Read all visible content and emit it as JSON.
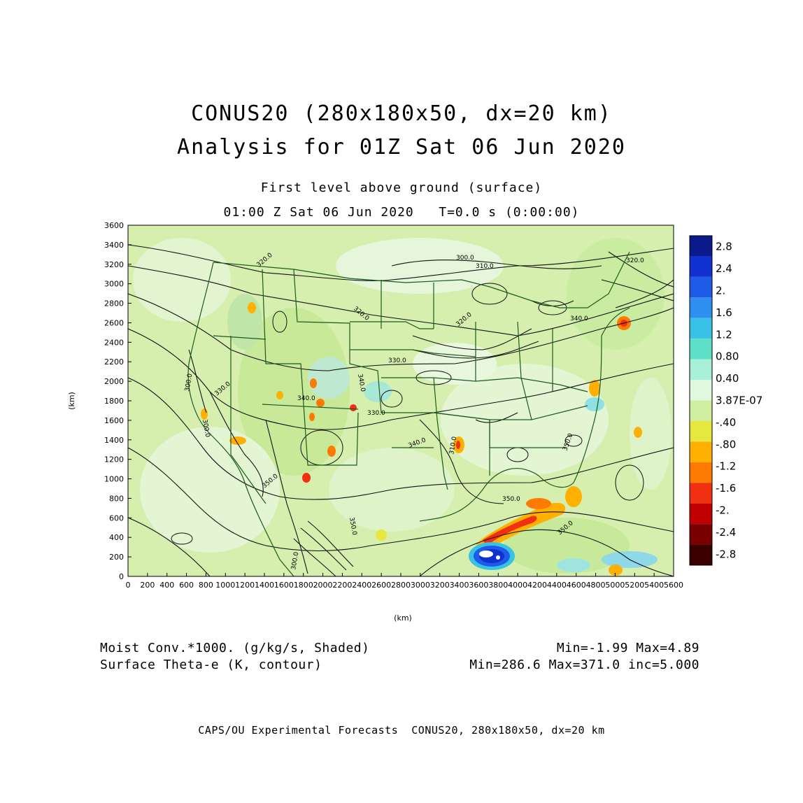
{
  "title": {
    "line1": "CONUS20 (280x180x50, dx=20 km)",
    "line2": "Analysis for 01Z Sat 06 Jun 2020"
  },
  "level": "First level above ground (surface)",
  "time_line": "01:00 Z Sat 06 Jun 2020   T=0.0 s (0:00:00)",
  "axes": {
    "xlabel": "(km)",
    "ylabel": "(km)",
    "x_ticks": [
      "0",
      "200",
      "400",
      "600",
      "800",
      "1000",
      "1200",
      "1400",
      "1600",
      "1800",
      "2000",
      "2200",
      "2400",
      "2600",
      "2800",
      "3000",
      "3200",
      "3400",
      "3600",
      "3800",
      "4000",
      "4200",
      "4400",
      "4600",
      "4800",
      "5000",
      "5200",
      "5400",
      "5600"
    ],
    "y_ticks": [
      "0",
      "200",
      "400",
      "600",
      "800",
      "1000",
      "1200",
      "1400",
      "1600",
      "1800",
      "2000",
      "2200",
      "2400",
      "2600",
      "2800",
      "3000",
      "3200",
      "3400",
      "3600"
    ],
    "xlim": [
      0,
      5600
    ],
    "ylim": [
      0,
      3600
    ]
  },
  "colorbar": {
    "labels": [
      "2.8",
      "2.4",
      "2.",
      "1.6",
      "1.2",
      "0.80",
      "0.40",
      "3.87E-07",
      "-.40",
      "-.80",
      "-1.2",
      "-1.6",
      "-2.",
      "-2.4",
      "-2.8"
    ],
    "colors": [
      "#0a1a8c",
      "#1030d0",
      "#1e5ce8",
      "#2f8ff0",
      "#38c2e8",
      "#5ee0c8",
      "#a8f0d8",
      "#e0f8e0",
      "#cfeea0",
      "#e6e840",
      "#ffb000",
      "#ff7a00",
      "#f03010",
      "#c00000",
      "#7a0000",
      "#3a0000"
    ]
  },
  "contour_labels": [
    "300.0",
    "310.0",
    "320.0",
    "320.0",
    "320.0",
    "320.0",
    "330.0",
    "330.0",
    "340.0",
    "340.0",
    "340.0",
    "340.0",
    "350.0",
    "350.0",
    "350.0",
    "350.0",
    "350.0",
    "300.0",
    "300.0",
    "300.0",
    "310.0",
    "330.0"
  ],
  "footer": {
    "left1": "Moist Conv.*1000. (g/kg/s, Shaded)",
    "left2": "Surface Theta-e (K, contour)",
    "right1": "Min=-1.99 Max=4.89",
    "right2": "Min=286.6 Max=371.0 inc=5.000"
  },
  "credit": "CAPS/OU Experimental Forecasts  CONUS20, 280x180x50, dx=20 km"
}
